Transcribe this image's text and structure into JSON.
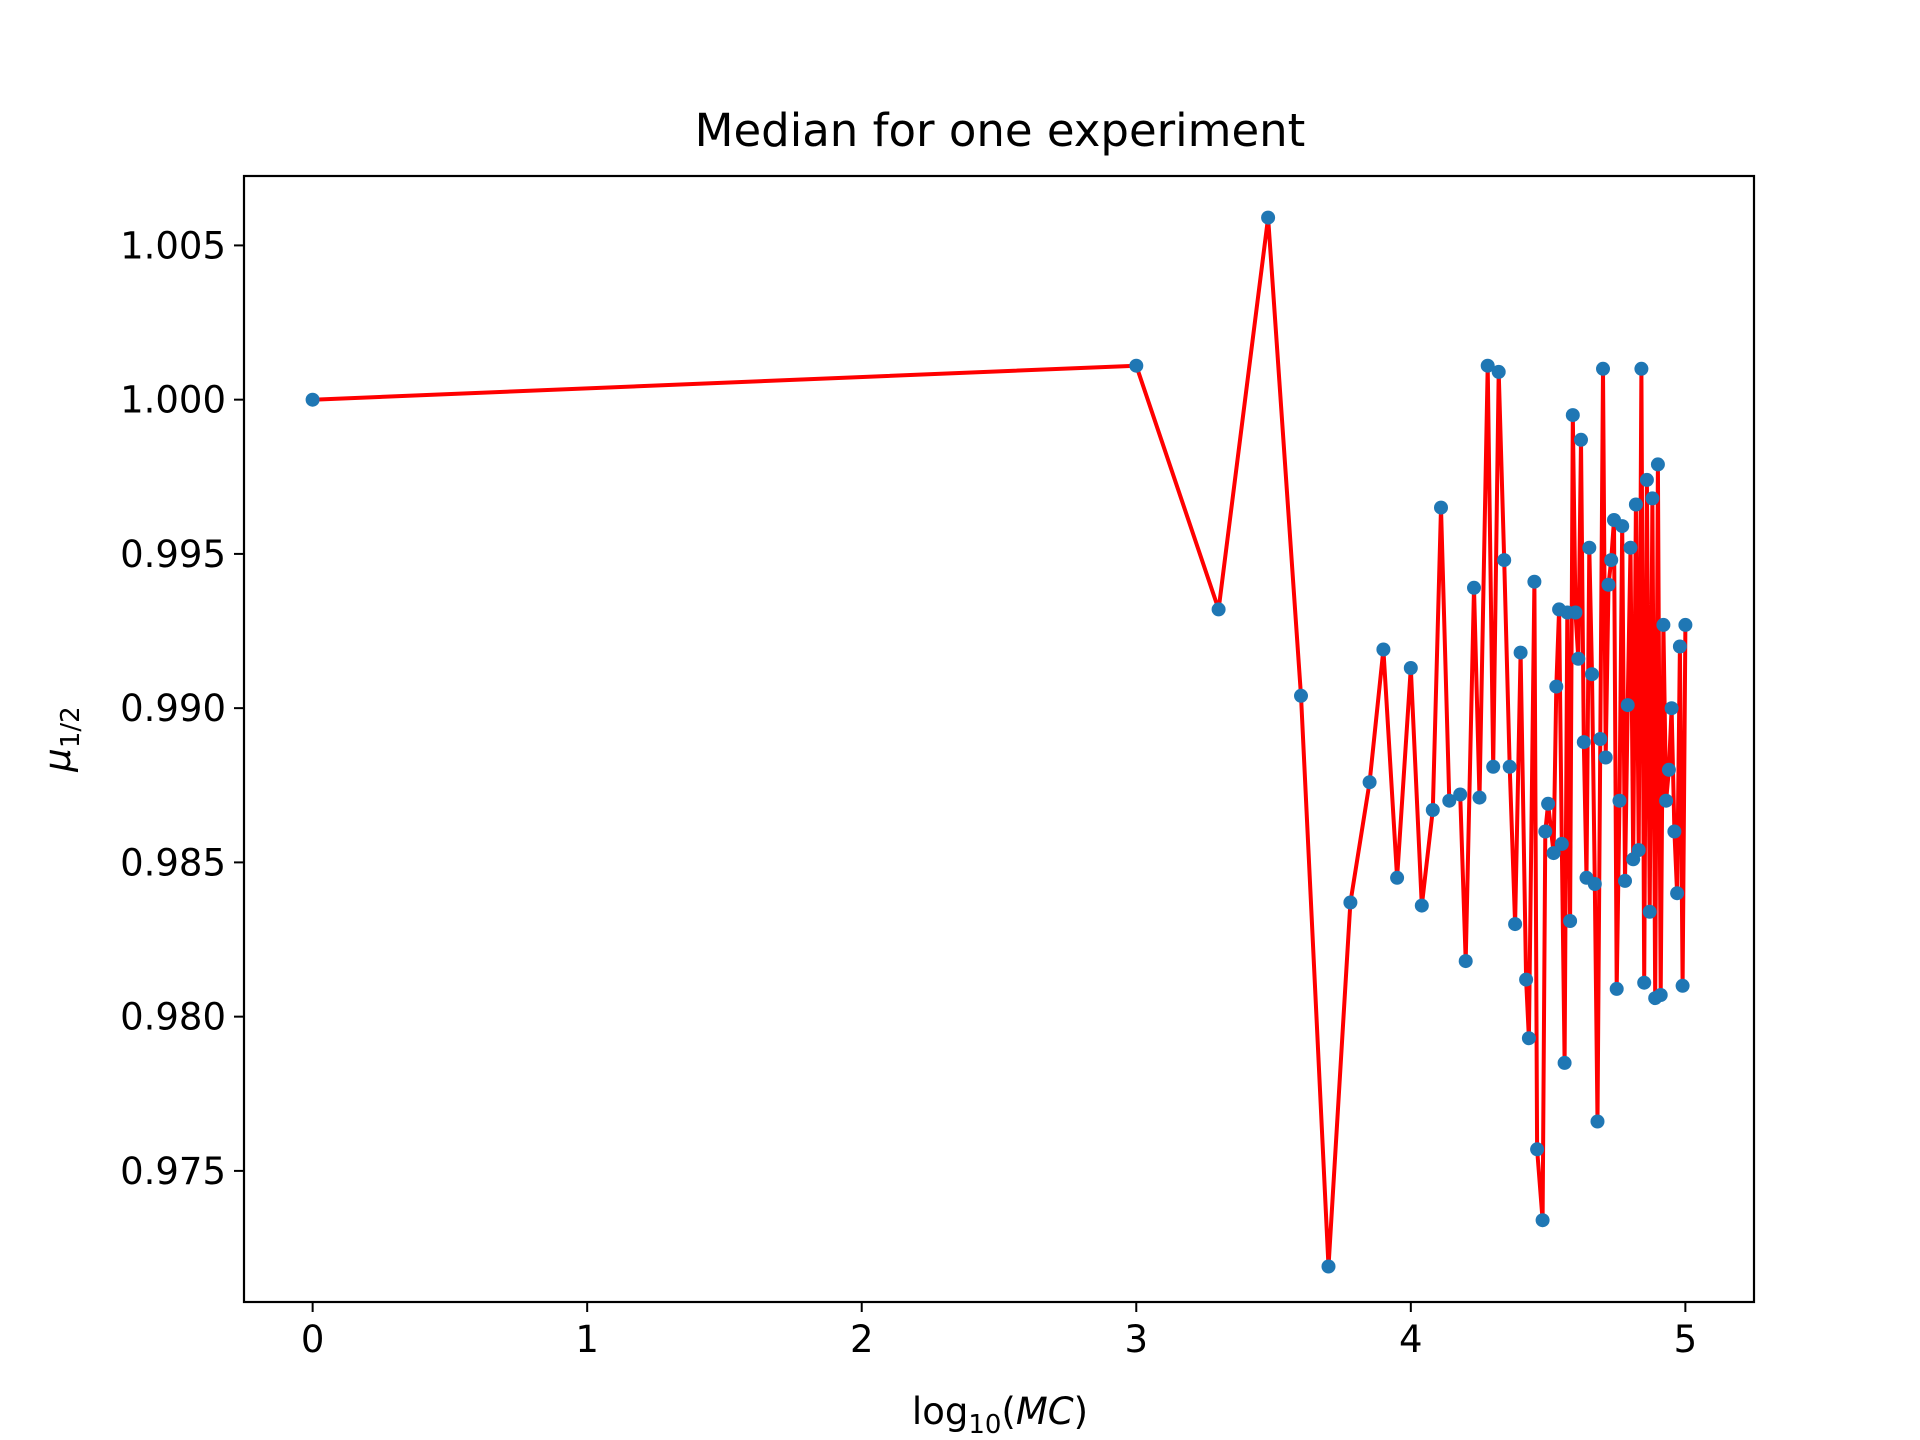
{
  "chart_data": {
    "type": "line",
    "title": "Median for one experiment",
    "xlabel": {
      "base": "log",
      "sub": "10",
      "open": "(",
      "var": "MC",
      "close": ")"
    },
    "ylabel": {
      "base": "μ",
      "sub": "1/2"
    },
    "xlim": [
      -0.25,
      5.25
    ],
    "ylim": [
      0.97075,
      1.00725
    ],
    "xticks": [
      0,
      1,
      2,
      3,
      4,
      5
    ],
    "xtick_labels": [
      "0",
      "1",
      "2",
      "3",
      "4",
      "5"
    ],
    "yticks": [
      0.975,
      0.98,
      0.985,
      0.99,
      0.995,
      1.0,
      1.005
    ],
    "ytick_labels": [
      "0.975",
      "0.980",
      "0.985",
      "0.990",
      "0.995",
      "1.000",
      "1.005"
    ],
    "grid": false,
    "legend": "none",
    "colors": {
      "line": "#ff0000",
      "marker": "#1f77b4",
      "axes": "#000000"
    },
    "series": [
      {
        "x": [
          0.0,
          3.0,
          3.3,
          3.48,
          3.6,
          3.7,
          3.78,
          3.85,
          3.9,
          3.95,
          4.0,
          4.04,
          4.08,
          4.11,
          4.14,
          4.18,
          4.2,
          4.23,
          4.25,
          4.28,
          4.3,
          4.32,
          4.34,
          4.36,
          4.38,
          4.4,
          4.42,
          4.43,
          4.45,
          4.46,
          4.48,
          4.49,
          4.5,
          4.52,
          4.53,
          4.54,
          4.55,
          4.56,
          4.57,
          4.58,
          4.59,
          4.6,
          4.61,
          4.62,
          4.63,
          4.64,
          4.65,
          4.66,
          4.67,
          4.68,
          4.69,
          4.7,
          4.71,
          4.72,
          4.73,
          4.74,
          4.75,
          4.76,
          4.77,
          4.78,
          4.79,
          4.8,
          4.81,
          4.82,
          4.83,
          4.84,
          4.85,
          4.86,
          4.87,
          4.88,
          4.89,
          4.9,
          4.91,
          4.92,
          4.93,
          4.94,
          4.95,
          4.96,
          4.97,
          4.98,
          4.99,
          5.0
        ],
        "y": [
          1.0,
          1.0011,
          0.9932,
          1.0059,
          0.9904,
          0.9719,
          0.9837,
          0.9876,
          0.9919,
          0.9845,
          0.9913,
          0.9836,
          0.9867,
          0.9965,
          0.987,
          0.9872,
          0.9818,
          0.9939,
          0.9871,
          1.0011,
          0.9881,
          1.0009,
          0.9948,
          0.9881,
          0.983,
          0.9918,
          0.9812,
          0.9793,
          0.9941,
          0.9757,
          0.9734,
          0.986,
          0.9869,
          0.9853,
          0.9907,
          0.9932,
          0.9856,
          0.9785,
          0.9931,
          0.9831,
          0.9995,
          0.9931,
          0.9916,
          0.9987,
          0.9889,
          0.9845,
          0.9952,
          0.9911,
          0.9843,
          0.9766,
          0.989,
          1.001,
          0.9884,
          0.994,
          0.9948,
          0.9961,
          0.9809,
          0.987,
          0.9959,
          0.9844,
          0.9901,
          0.9952,
          0.9851,
          0.9966,
          0.9854,
          1.001,
          0.9811,
          0.9974,
          0.9834,
          0.9968,
          0.9806,
          0.9979,
          0.9807,
          0.9927,
          0.987,
          0.988,
          0.99,
          0.986,
          0.984,
          0.992,
          0.981,
          0.9927
        ]
      }
    ]
  }
}
